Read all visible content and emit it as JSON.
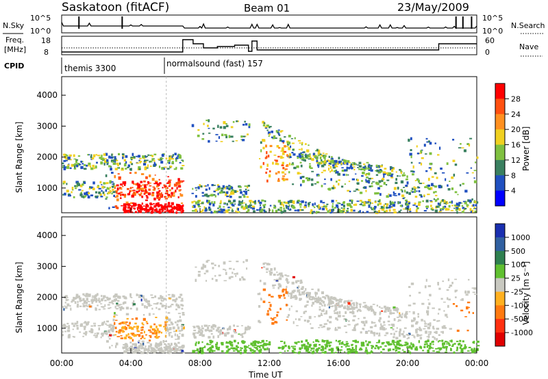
{
  "header": {
    "station": "Saskatoon (fitACF)",
    "beam": "Beam 01",
    "date": "23/May/2009"
  },
  "noise_panel": {
    "left_label": "N.Sky",
    "right_label": "N.Search",
    "left_ticks": [
      "10^5",
      "10^0"
    ],
    "right_ticks": [
      "10^5",
      "10^0"
    ]
  },
  "freq_panel": {
    "left_label_1": "Freq.",
    "left_label_2": "[MHz]",
    "right_label": "Nave",
    "left_ticks": [
      "18",
      "8"
    ],
    "right_ticks": [
      "60",
      "0"
    ]
  },
  "cpid": {
    "label": "CPID",
    "segments": [
      "themis 3300",
      "normalsound (fast) 157"
    ]
  },
  "chart_data": [
    {
      "type": "heatmap",
      "name": "power",
      "ylabel": "Slant Range [km]",
      "yticks": [
        1000,
        2000,
        3000,
        4000
      ],
      "ylim": [
        200,
        4600
      ],
      "xlim": [
        0,
        24
      ],
      "xticks": [
        "00:00",
        "04:00",
        "08:00",
        "12:00",
        "16:00",
        "20:00",
        "00:00"
      ],
      "colorbar": {
        "label": "Power [dB]",
        "ticks": [
          "4",
          "8",
          "12",
          "16",
          "20",
          "24",
          "28"
        ],
        "colors": [
          "#0000ff",
          "#2050c0",
          "#3a8060",
          "#7fc040",
          "#f0d020",
          "#ff9020",
          "#ff5010",
          "#ff0000"
        ]
      }
    },
    {
      "type": "heatmap",
      "name": "velocity",
      "ylabel": "Slant Range [km]",
      "xlabel": "Time UT",
      "yticks": [
        1000,
        2000,
        3000,
        4000
      ],
      "ylim": [
        200,
        4600
      ],
      "xlim": [
        0,
        24
      ],
      "xticks": [
        "00:00",
        "04:00",
        "08:00",
        "12:00",
        "16:00",
        "20:00",
        "00:00"
      ],
      "colorbar": {
        "label": "Velocity [m s⁻¹]",
        "ticks": [
          "1000",
          "500",
          "100",
          "25",
          "-25",
          "-100",
          "-500",
          "-1000"
        ],
        "colors": [
          "#1a2fb0",
          "#3060a0",
          "#2f8050",
          "#60c030",
          "#c8c8c0",
          "#ffb020",
          "#ff7a10",
          "#ff3010",
          "#e00000"
        ]
      }
    }
  ],
  "colors": {
    "grey": "#c8c8c0",
    "blue": "#2050c0",
    "orange": "#ff8c10",
    "red": "#ff1a00"
  }
}
